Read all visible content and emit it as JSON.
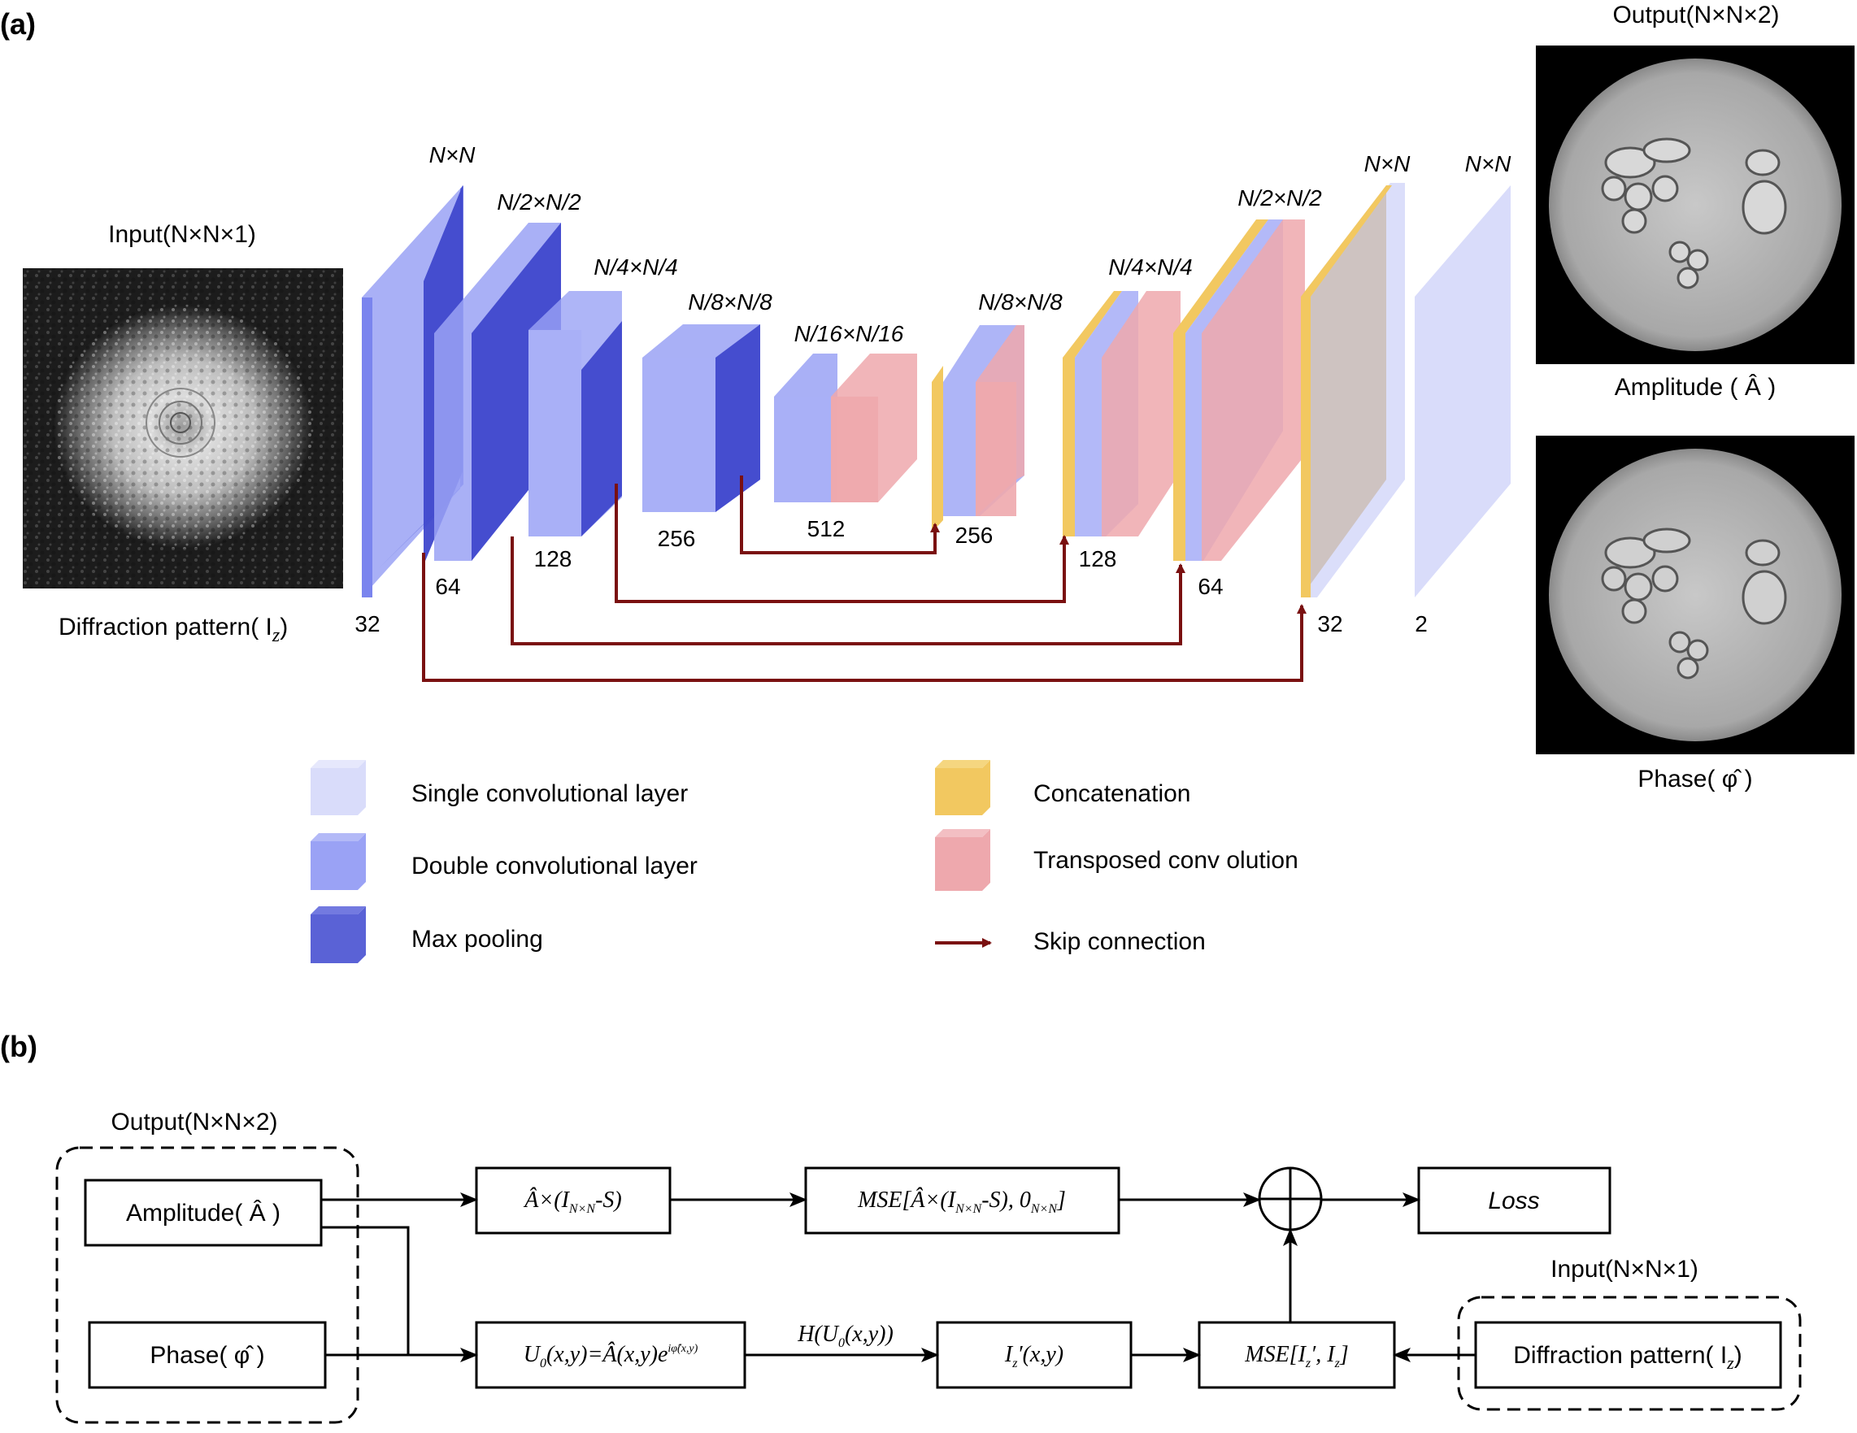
{
  "panel_a": {
    "label": "(a)",
    "input_title": "Input(N×N×1)",
    "input_caption": "Diffraction pattern( I",
    "input_caption_sub": "z",
    "input_caption_close": ")",
    "output_title": "Output(N×N×2)",
    "amplitude_caption": "Amplitude ( Â )",
    "phase_caption": "Phase( φ̂ )",
    "encoder": [
      {
        "size": "N×N",
        "channels": "32"
      },
      {
        "size": "N/2×N/2",
        "channels": "64"
      },
      {
        "size": "N/4×N/4",
        "channels": "128"
      },
      {
        "size": "N/8×N/8",
        "channels": "256"
      },
      {
        "size": "N/16×N/16",
        "channels": "512"
      }
    ],
    "decoder": [
      {
        "size": "N/8×N/8",
        "channels": "256"
      },
      {
        "size": "N/4×N/4",
        "channels": "128"
      },
      {
        "size": "N/2×N/2",
        "channels": "64"
      },
      {
        "size": "N×N",
        "channels": "32"
      },
      {
        "size": "N×N",
        "channels": "2"
      }
    ],
    "legend": [
      {
        "label": "Single convolutional layer",
        "color": "#d9dcfa"
      },
      {
        "label": "Double convolutional layer",
        "color": "#9aa2f5"
      },
      {
        "label": "Max pooling",
        "color": "#5a62d6"
      },
      {
        "label": "Concatenation",
        "color": "#f2c860"
      },
      {
        "label": "Transposed conv olution",
        "color": "#eea8ad"
      },
      {
        "label": "Skip connection",
        "color": "#7a1010"
      }
    ]
  },
  "panel_b": {
    "label": "(b)",
    "output_group_title": "Output(N×N×2)",
    "input_group_title": "Input(N×N×1)",
    "amplitude_box": "Amplitude( Â )",
    "phase_box": "Phase( φ̂ )",
    "mask_box": "Â×(I",
    "mask_box_sub": "N×N",
    "mask_box_tail": "-S)",
    "mse_mask_box": "MSE[Â×(I",
    "mse_mask_sub1": "N×N",
    "mse_mask_mid": "-S), 0",
    "mse_mask_sub2": "N×N",
    "mse_mask_tail": "]",
    "field_box": "U",
    "field_box_sub": "0",
    "field_box_tail": "(x,y)=Â(x,y)e",
    "field_box_sup": "iφ̂(x,y)",
    "propagation_label": "H(U",
    "propagation_sub": "0",
    "propagation_tail": "(x,y))",
    "intensity_box": "I",
    "intensity_sub": "z",
    "intensity_tail": "′(x,y)",
    "mse_intensity_box": "MSE[I",
    "mse_int_sub1": "z",
    "mse_int_mid": "′, I",
    "mse_int_sub2": "z",
    "mse_int_tail": "]",
    "loss_box": "Loss",
    "diffraction_box": "Diffraction pattern( I",
    "diffraction_sub": "z",
    "diffraction_tail": ")"
  },
  "colors": {
    "single_conv": "#d9dcfa",
    "double_conv": "#9aa2f5",
    "max_pool": "#4a52d0",
    "concat": "#f2c860",
    "transposed": "#eea8ad",
    "skip": "#7a1010"
  }
}
